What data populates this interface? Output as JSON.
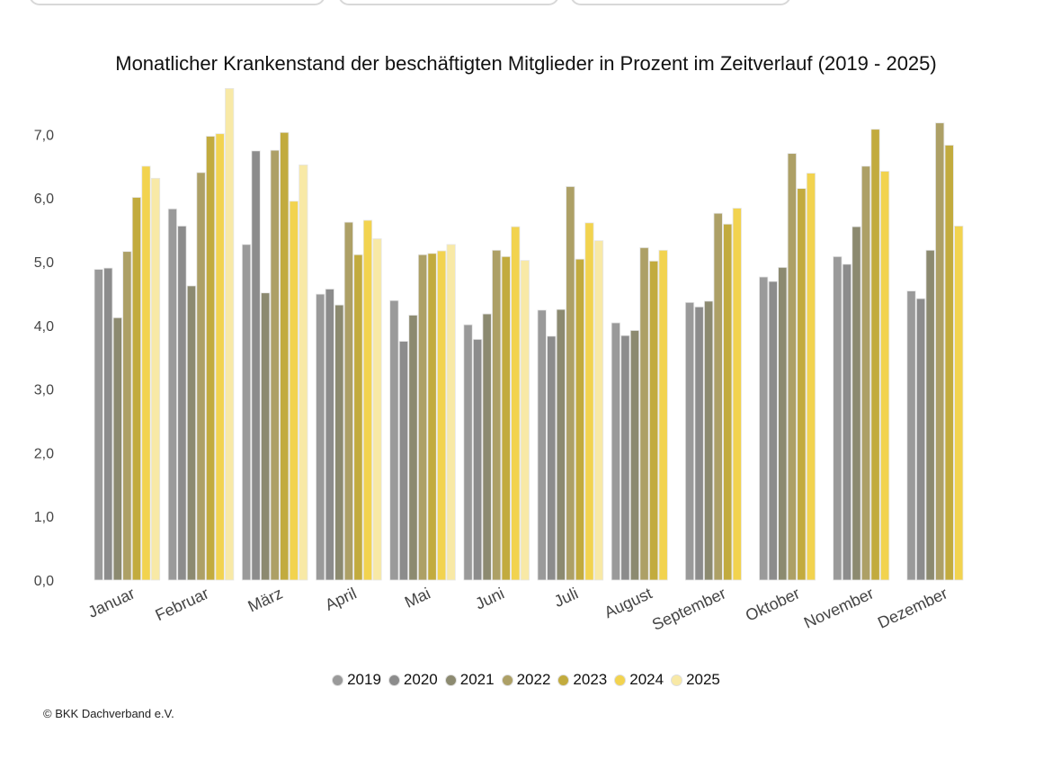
{
  "chart_data": {
    "type": "bar",
    "title": "Monatlicher Krankenstand der beschäftigten Mitglieder in Prozent im Zeitverlauf (2019 - 2025)",
    "xlabel": "",
    "ylabel": "",
    "ylim": [
      0,
      7.7
    ],
    "yticks": [
      "0,0",
      "1,0",
      "2,0",
      "3,0",
      "4,0",
      "5,0",
      "6,0",
      "7,0"
    ],
    "grid": false,
    "legend_position": "bottom",
    "categories": [
      "Januar",
      "Februar",
      "März",
      "April",
      "Mai",
      "Juni",
      "Juli",
      "August",
      "September",
      "Oktober",
      "November",
      "Dezember"
    ],
    "series": [
      {
        "name": "2019",
        "color": "#9a9a9a",
        "values": [
          4.88,
          5.83,
          5.27,
          4.49,
          4.39,
          4.01,
          4.24,
          4.04,
          4.36,
          4.76,
          5.08,
          4.54
        ]
      },
      {
        "name": "2020",
        "color": "#8c8c8c",
        "values": [
          4.9,
          5.56,
          6.74,
          4.57,
          3.75,
          3.78,
          3.83,
          3.84,
          4.29,
          4.69,
          4.96,
          4.42
        ]
      },
      {
        "name": "2021",
        "color": "#8c8a70",
        "values": [
          4.12,
          4.62,
          4.51,
          4.32,
          4.16,
          4.18,
          4.25,
          3.92,
          4.38,
          4.91,
          5.55,
          5.18
        ]
      },
      {
        "name": "2022",
        "color": "#ada066",
        "values": [
          5.16,
          6.4,
          6.75,
          5.62,
          5.11,
          5.18,
          6.18,
          5.22,
          5.76,
          6.7,
          6.5,
          7.18
        ]
      },
      {
        "name": "2023",
        "color": "#c2ab3e",
        "values": [
          6.01,
          6.97,
          7.03,
          5.11,
          5.13,
          5.08,
          5.04,
          5.01,
          5.59,
          6.15,
          7.08,
          6.83
        ]
      },
      {
        "name": "2024",
        "color": "#f2d34f",
        "values": [
          6.5,
          7.01,
          5.95,
          5.65,
          5.17,
          5.55,
          5.61,
          5.18,
          5.84,
          6.39,
          6.42,
          5.56
        ]
      },
      {
        "name": "2025",
        "color": "#f8e9a6",
        "values": [
          6.31,
          7.72,
          6.52,
          5.36,
          5.27,
          5.02,
          5.33,
          null,
          null,
          null,
          null,
          null
        ]
      }
    ]
  },
  "source": "© BKK Dachverband e.V."
}
